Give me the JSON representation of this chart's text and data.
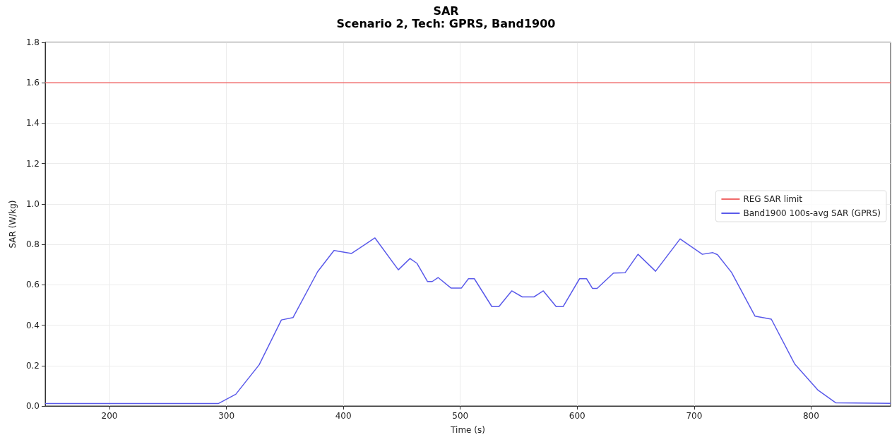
{
  "chart_data": {
    "type": "line",
    "title": "SAR",
    "subtitle": "Scenario 2, Tech: GPRS, Band1900",
    "xlabel": "Time (s)",
    "ylabel": "SAR (W/kg)",
    "xlim": [
      145,
      868
    ],
    "xticks": [
      200,
      300,
      400,
      500,
      600,
      700,
      800
    ],
    "ylim": [
      0,
      1.8
    ],
    "yticks": [
      {
        "value": 0,
        "label": "0.0"
      },
      0.2,
      0.4,
      0.6,
      0.8,
      {
        "value": 1,
        "label": "1.0"
      },
      1.2,
      1.4,
      1.6,
      1.8
    ],
    "grid": true,
    "legend": "right",
    "marker": "none",
    "line_style": "solid",
    "ref_lines": [
      {
        "axis": "y",
        "value": 1.6,
        "label": "REG SAR limit",
        "color": "#f06a6a"
      }
    ],
    "series": [
      {
        "name": "Band1900 100s-avg SAR (GPRS)",
        "color": "#5a5aea",
        "x": [
          145,
          293,
          308,
          328,
          347,
          357,
          378,
          392,
          407,
          427,
          447,
          457,
          463,
          472,
          476,
          481,
          492,
          501,
          507,
          512,
          527,
          533,
          544,
          553,
          563,
          571,
          582,
          588,
          602,
          608,
          613,
          617,
          631,
          641,
          652,
          667,
          688,
          707,
          716,
          720,
          732,
          752,
          766,
          786,
          806,
          821,
          868
        ],
        "values": [
          0.012,
          0.012,
          0.058,
          0.204,
          0.426,
          0.438,
          0.665,
          0.77,
          0.755,
          0.832,
          0.674,
          0.73,
          0.706,
          0.616,
          0.616,
          0.636,
          0.584,
          0.584,
          0.63,
          0.63,
          0.492,
          0.492,
          0.57,
          0.54,
          0.54,
          0.57,
          0.492,
          0.492,
          0.63,
          0.63,
          0.582,
          0.582,
          0.658,
          0.66,
          0.751,
          0.667,
          0.827,
          0.751,
          0.759,
          0.749,
          0.661,
          0.445,
          0.43,
          0.208,
          0.078,
          0.016,
          0.013
        ]
      }
    ]
  }
}
